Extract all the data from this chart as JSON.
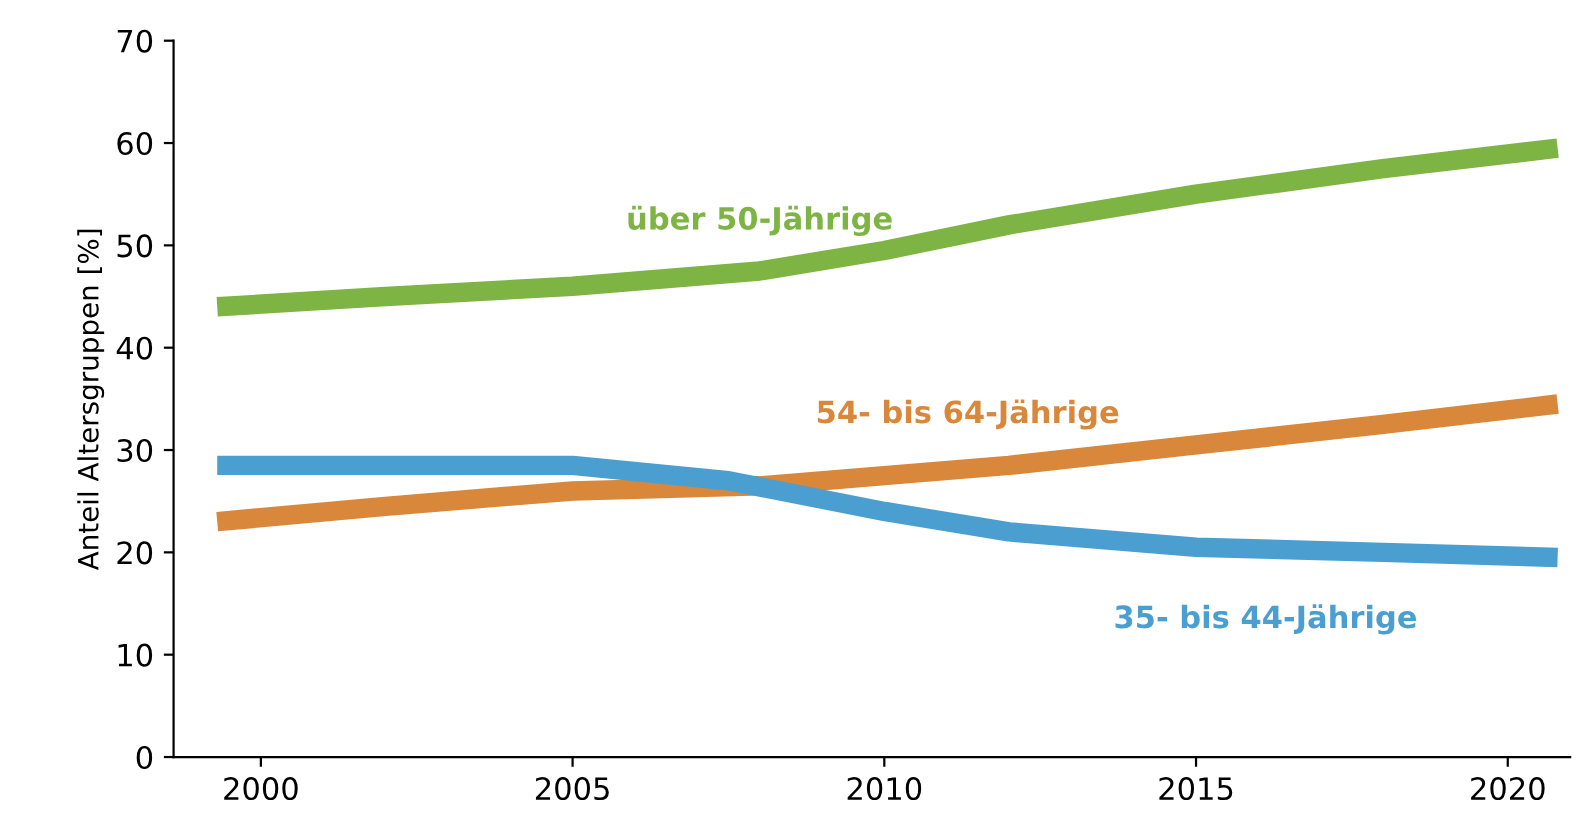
{
  "chart_data": {
    "type": "line",
    "ylabel": "Anteil Altersgruppen [%]",
    "xlim": [
      1998.6,
      2021
    ],
    "ylim": [
      0,
      70
    ],
    "xticks": [
      2000,
      2005,
      2010,
      2015,
      2020
    ],
    "yticks": [
      0,
      10,
      20,
      30,
      40,
      50,
      60,
      70
    ],
    "grid": false,
    "legend": false,
    "marker": "none",
    "line_style": "solid",
    "series": [
      {
        "name": "über 50-Jährige",
        "color": "#7db443",
        "x": [
          1999.3,
          2002,
          2005,
          2008,
          2010,
          2012,
          2015,
          2018,
          2020.8
        ],
        "values": [
          44,
          45,
          46,
          47.5,
          49.5,
          52,
          55,
          57.5,
          59.5
        ]
      },
      {
        "name": "54- bis 64-Jährige",
        "color": "#d9873a",
        "x": [
          1999.3,
          2002,
          2005,
          2008,
          2010,
          2012,
          2015,
          2018,
          2020.8
        ],
        "values": [
          23,
          24.5,
          26,
          26.5,
          27.5,
          28.5,
          30.5,
          32.5,
          34.5
        ]
      },
      {
        "name": "35- bis 44-Jährige",
        "color": "#4b9fd0",
        "x": [
          1999.3,
          2002,
          2005,
          2007.5,
          2010,
          2012,
          2015,
          2018,
          2020.8
        ],
        "values": [
          28.5,
          28.5,
          28.5,
          27,
          24,
          22,
          20.5,
          20,
          19.5
        ]
      }
    ]
  }
}
